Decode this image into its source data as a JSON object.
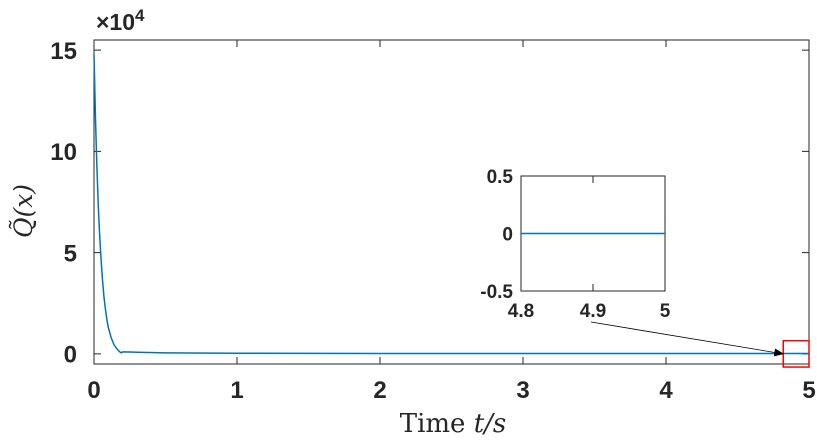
{
  "chart_data": [
    {
      "name": "main",
      "type": "line",
      "xlabel_text": "Time ",
      "xlabel_var": "t/s",
      "ylabel": "Q̃(x)",
      "multiplier_prefix": "×10",
      "multiplier_exp": "4",
      "xlim": [
        0,
        5
      ],
      "ylim": [
        -0.5,
        15.5
      ],
      "xticks": [
        0,
        1,
        2,
        3,
        4,
        5
      ],
      "xtick_labels": [
        "0",
        "1",
        "2",
        "3",
        "4",
        "5"
      ],
      "yticks": [
        0,
        5,
        10,
        15
      ],
      "ytick_labels": [
        "0",
        "5",
        "10",
        "15"
      ],
      "line_color": "#0072BD",
      "series": [
        {
          "x": [
            0,
            0.01,
            0.02,
            0.03,
            0.04,
            0.05,
            0.06,
            0.07,
            0.08,
            0.09,
            0.1,
            0.12,
            0.14,
            0.16,
            0.18,
            0.19,
            0.2,
            0.25,
            0.3,
            0.5,
            1,
            2,
            3,
            4,
            5
          ],
          "y": [
            14.8,
            11.7,
            9.3,
            7.3,
            5.8,
            4.6,
            3.6,
            2.8,
            2.2,
            1.7,
            1.3,
            0.8,
            0.45,
            0.25,
            0.1,
            0.05,
            0.1,
            0.09,
            0.08,
            0.05,
            0.03,
            0.02,
            0.02,
            0.02,
            0.02
          ]
        }
      ],
      "highlight_box": {
        "x": [
          4.82,
          5.0
        ],
        "y": [
          -0.65,
          0.65
        ],
        "color": "#ff0000"
      }
    },
    {
      "name": "inset",
      "type": "line",
      "xlim": [
        4.8,
        5.0
      ],
      "ylim": [
        -0.5,
        0.5
      ],
      "xticks": [
        4.8,
        4.9,
        5.0
      ],
      "xtick_labels": [
        "4.8",
        "4.9",
        "5"
      ],
      "yticks": [
        -0.5,
        0,
        0.5
      ],
      "ytick_labels": [
        "-0.5",
        "0",
        "0.5"
      ],
      "line_color": "#0072BD",
      "series": [
        {
          "x": [
            4.8,
            5.0
          ],
          "y": [
            0,
            0
          ]
        }
      ]
    }
  ]
}
